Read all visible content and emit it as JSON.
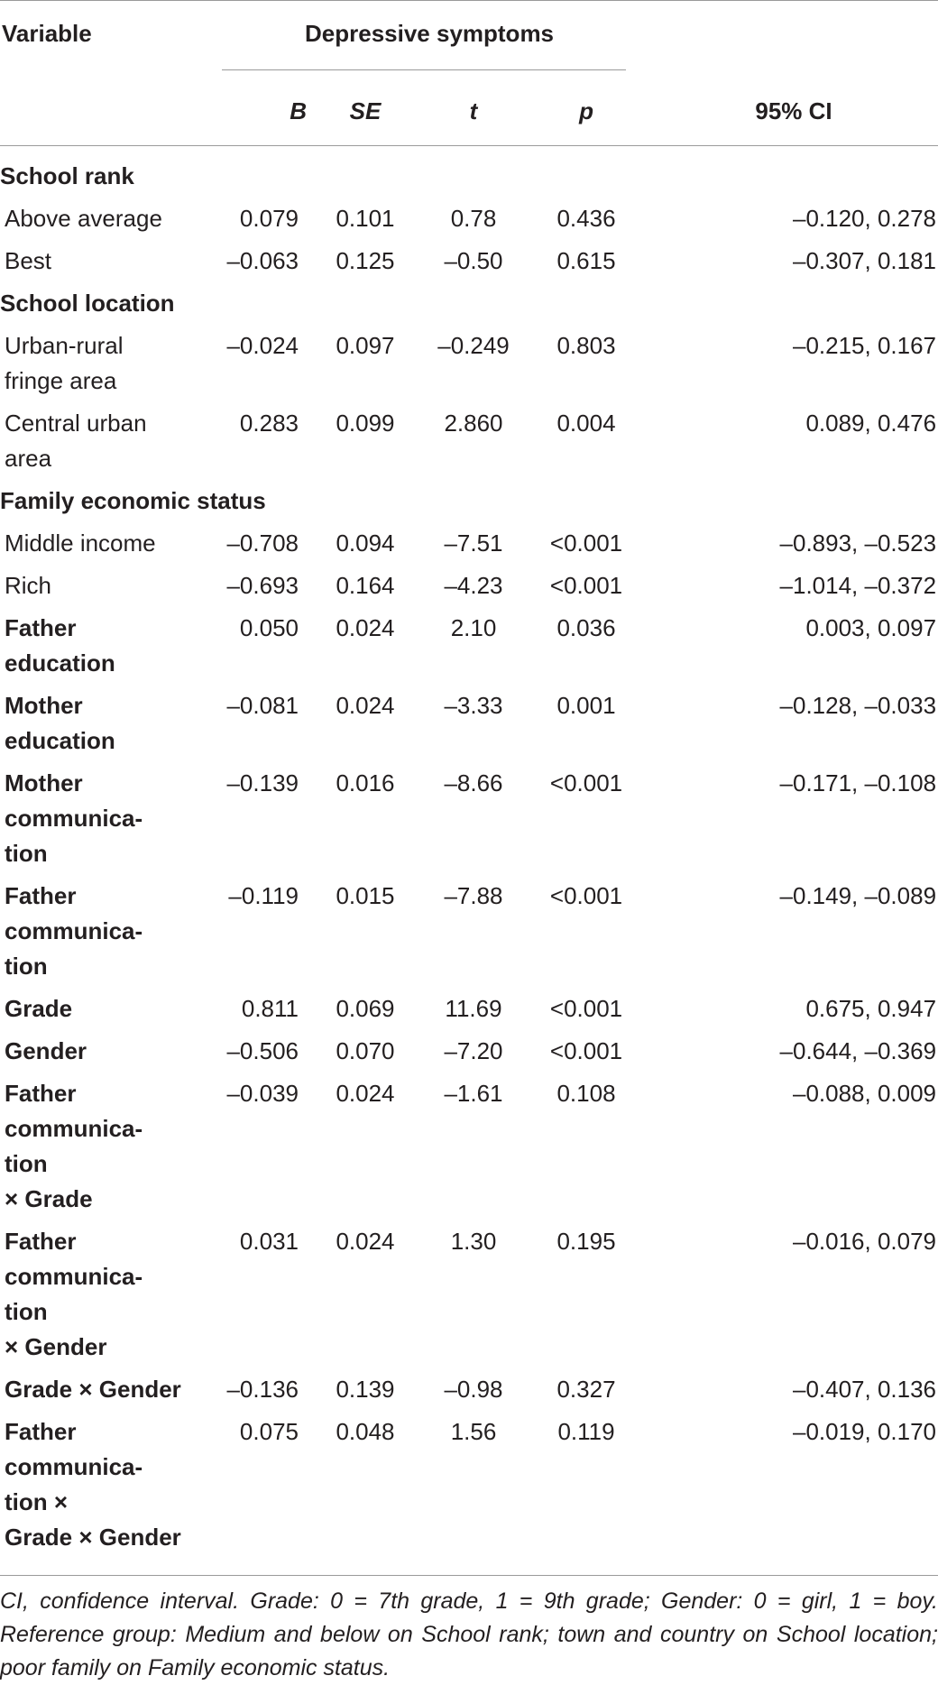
{
  "table": {
    "header": {
      "variable": "Variable",
      "group": "Depressive symptoms",
      "columns": [
        "B",
        "SE",
        "t",
        "p"
      ],
      "ci": "95% CI"
    },
    "rows": [
      {
        "label": [
          "School rank"
        ],
        "bold": true,
        "section": true
      },
      {
        "label": [
          "Above average"
        ],
        "cells": [
          "0.079",
          "0.101",
          "0.78",
          "0.436",
          "–0.120, 0.278"
        ]
      },
      {
        "label": [
          "Best"
        ],
        "cells": [
          "–0.063",
          "0.125",
          "–0.50",
          "0.615",
          "–0.307, 0.181"
        ]
      },
      {
        "label": [
          "School location"
        ],
        "bold": true,
        "section": true
      },
      {
        "label": [
          "Urban-rural",
          "fringe area"
        ],
        "cells": [
          "–0.024",
          "0.097",
          "–0.249",
          "0.803",
          "–0.215, 0.167"
        ]
      },
      {
        "label": [
          "Central urban",
          "area"
        ],
        "cells": [
          "0.283",
          "0.099",
          "2.860",
          "0.004",
          "0.089, 0.476"
        ]
      },
      {
        "label": [
          "Family economic status"
        ],
        "bold": true,
        "section": true
      },
      {
        "label": [
          "Middle income"
        ],
        "cells": [
          "–0.708",
          "0.094",
          "–7.51",
          "<0.001",
          "–0.893, –0.523"
        ]
      },
      {
        "label": [
          "Rich"
        ],
        "cells": [
          "–0.693",
          "0.164",
          "–4.23",
          "<0.001",
          "–1.014, –0.372"
        ]
      },
      {
        "label": [
          "Father",
          "education"
        ],
        "bold": true,
        "cells": [
          "0.050",
          "0.024",
          "2.10",
          "0.036",
          "0.003, 0.097"
        ]
      },
      {
        "label": [
          "Mother",
          "education"
        ],
        "bold": true,
        "cells": [
          "–0.081",
          "0.024",
          "–3.33",
          "0.001",
          "–0.128, –0.033"
        ]
      },
      {
        "label": [
          "Mother",
          "communica-",
          "tion"
        ],
        "bold": true,
        "cells": [
          "–0.139",
          "0.016",
          "–8.66",
          "<0.001",
          "–0.171, –0.108"
        ]
      },
      {
        "label": [
          "Father",
          "communica-",
          "tion"
        ],
        "bold": true,
        "cells": [
          "–0.119",
          "0.015",
          "–7.88",
          "<0.001",
          "–0.149, –0.089"
        ]
      },
      {
        "label": [
          "Grade"
        ],
        "bold": true,
        "cells": [
          "0.811",
          "0.069",
          "11.69",
          "<0.001",
          "0.675, 0.947"
        ]
      },
      {
        "label": [
          "Gender"
        ],
        "bold": true,
        "cells": [
          "–0.506",
          "0.070",
          "–7.20",
          "<0.001",
          "–0.644, –0.369"
        ]
      },
      {
        "label": [
          "Father",
          "communica-",
          "tion",
          "× Grade"
        ],
        "bold": true,
        "cells": [
          "–0.039",
          "0.024",
          "–1.61",
          "0.108",
          "–0.088, 0.009"
        ]
      },
      {
        "label": [
          "Father",
          "communica-",
          "tion",
          "× Gender"
        ],
        "bold": true,
        "cells": [
          "0.031",
          "0.024",
          "1.30",
          "0.195",
          "–0.016, 0.079"
        ]
      },
      {
        "label": [
          "Grade × Gender"
        ],
        "bold": true,
        "cells": [
          "–0.136",
          "0.139",
          "–0.98",
          "0.327",
          "–0.407, 0.136"
        ]
      },
      {
        "label": [
          "Father",
          "communica-",
          "tion ×",
          "Grade × Gender"
        ],
        "bold": true,
        "cells": [
          "0.075",
          "0.048",
          "1.56",
          "0.119",
          "–0.019, 0.170"
        ]
      }
    ],
    "footnote": "CI, confidence interval. Grade: 0 = 7th grade, 1 = 9th grade; Gender: 0 = girl, 1 = boy. Reference group: Medium and below on School rank; town and country on School location; poor family on Family economic status."
  }
}
